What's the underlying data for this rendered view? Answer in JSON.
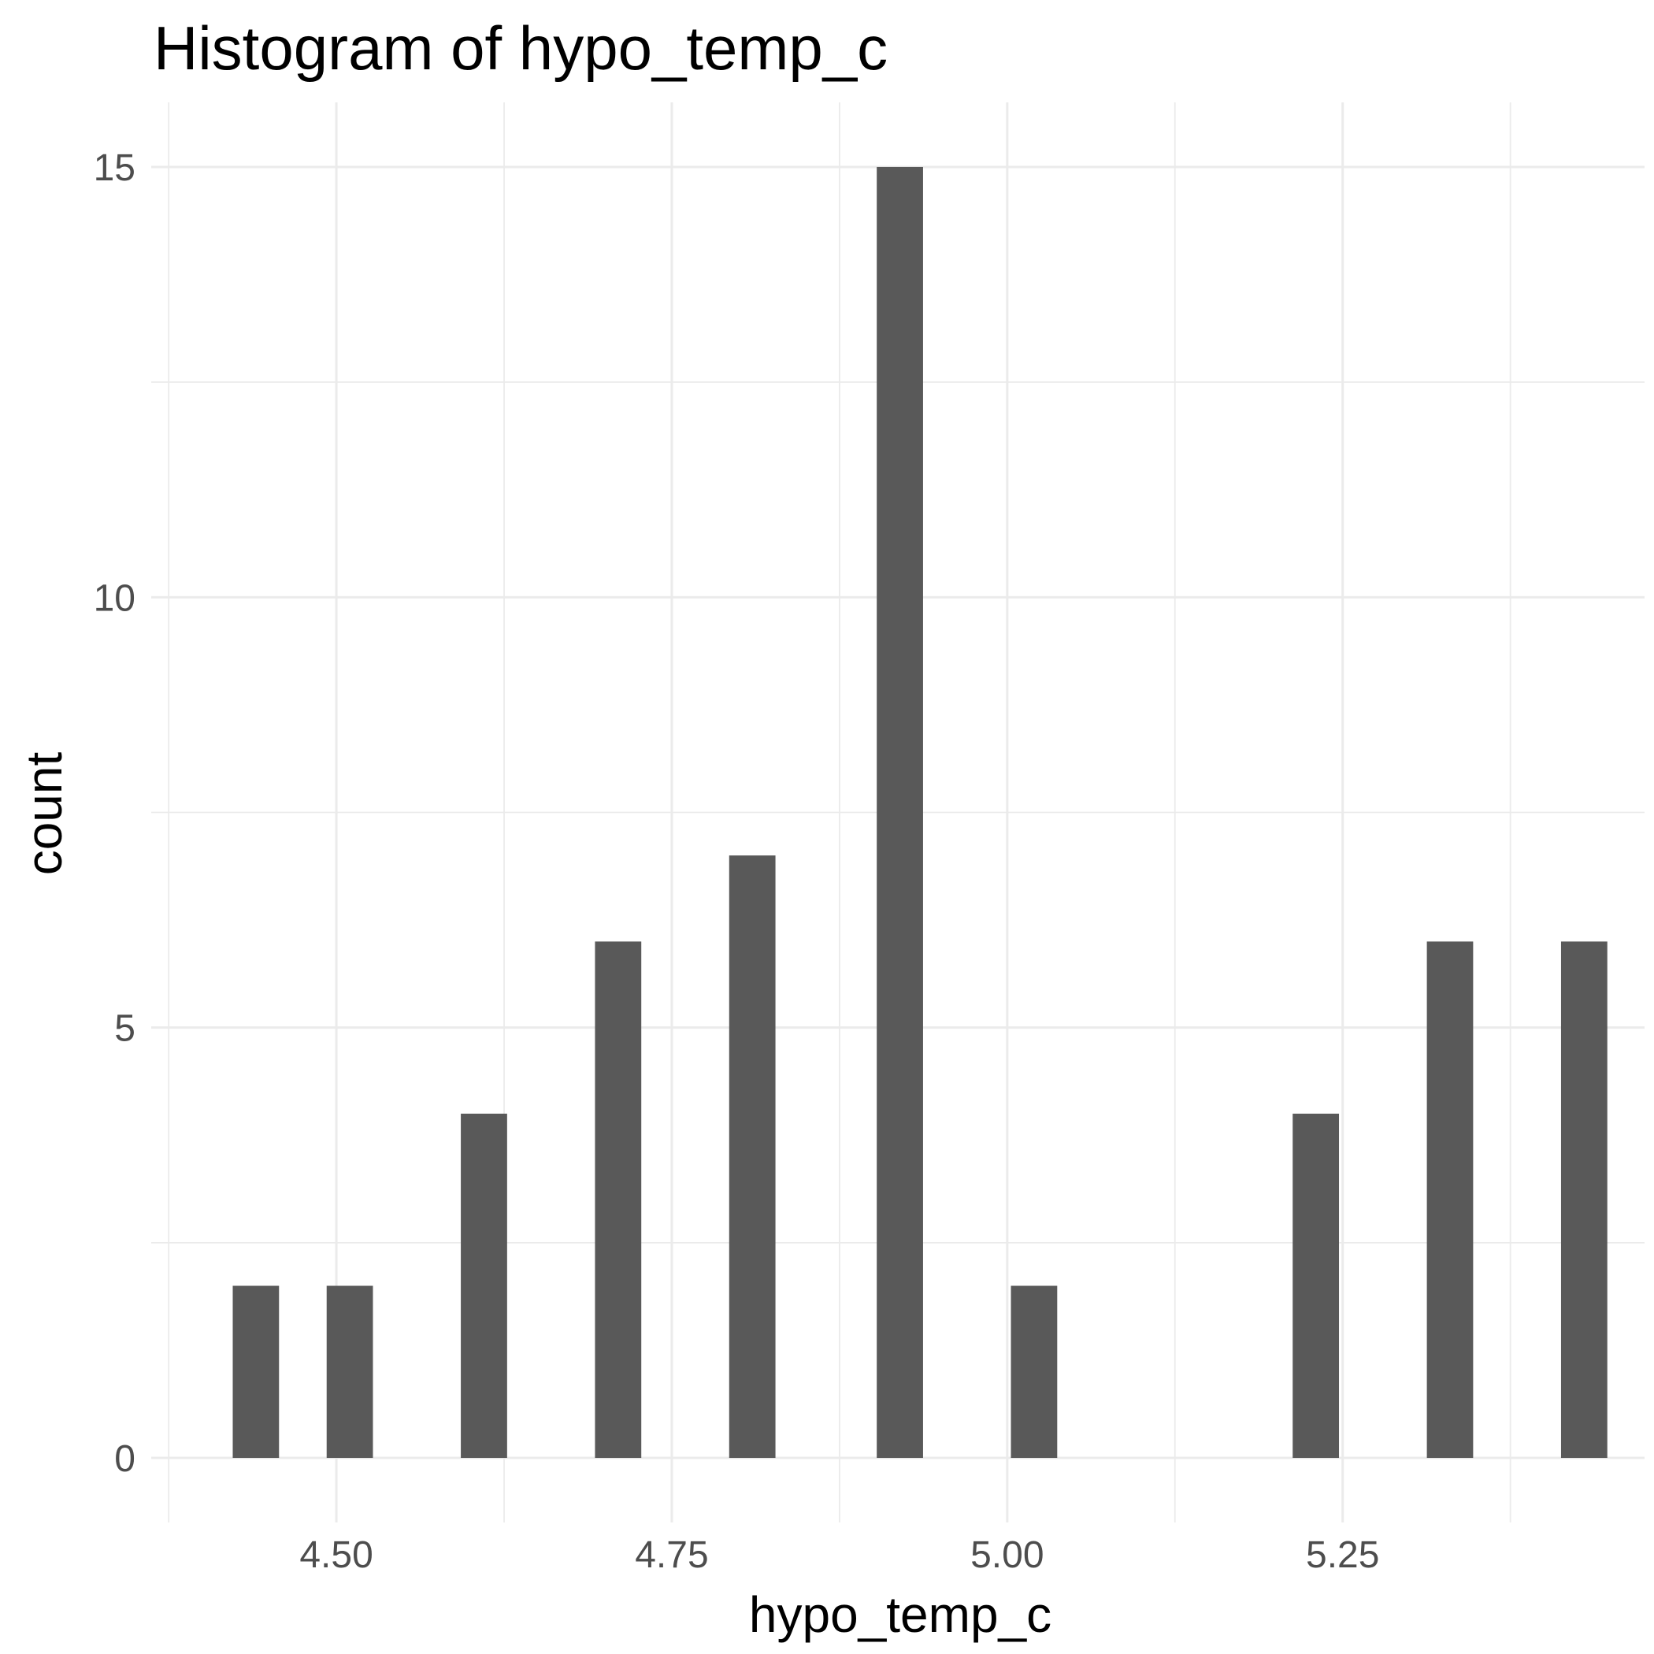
{
  "chart_data": {
    "type": "bar",
    "title": "Histogram of  hypo_temp_c",
    "xlabel": "hypo_temp_c",
    "ylabel": "count",
    "xlim": [
      4.362,
      5.475
    ],
    "ylim": [
      -0.75,
      15.75
    ],
    "x_ticks": [
      4.5,
      4.75,
      5.0,
      5.25
    ],
    "x_tick_labels": [
      "4.50",
      "4.75",
      "5.00",
      "5.25"
    ],
    "y_ticks": [
      0,
      5,
      10,
      15
    ],
    "y_tick_labels": [
      "0",
      "5",
      "10",
      "15"
    ],
    "grid": true,
    "bin_width": 0.0345,
    "bins": [
      {
        "x": 4.44,
        "count": 2
      },
      {
        "x": 4.51,
        "count": 2
      },
      {
        "x": 4.61,
        "count": 4
      },
      {
        "x": 4.71,
        "count": 6
      },
      {
        "x": 4.81,
        "count": 7
      },
      {
        "x": 4.92,
        "count": 15
      },
      {
        "x": 5.02,
        "count": 2
      },
      {
        "x": 5.23,
        "count": 4
      },
      {
        "x": 5.33,
        "count": 6
      },
      {
        "x": 5.43,
        "count": 6
      }
    ],
    "bar_color": "#595959"
  }
}
